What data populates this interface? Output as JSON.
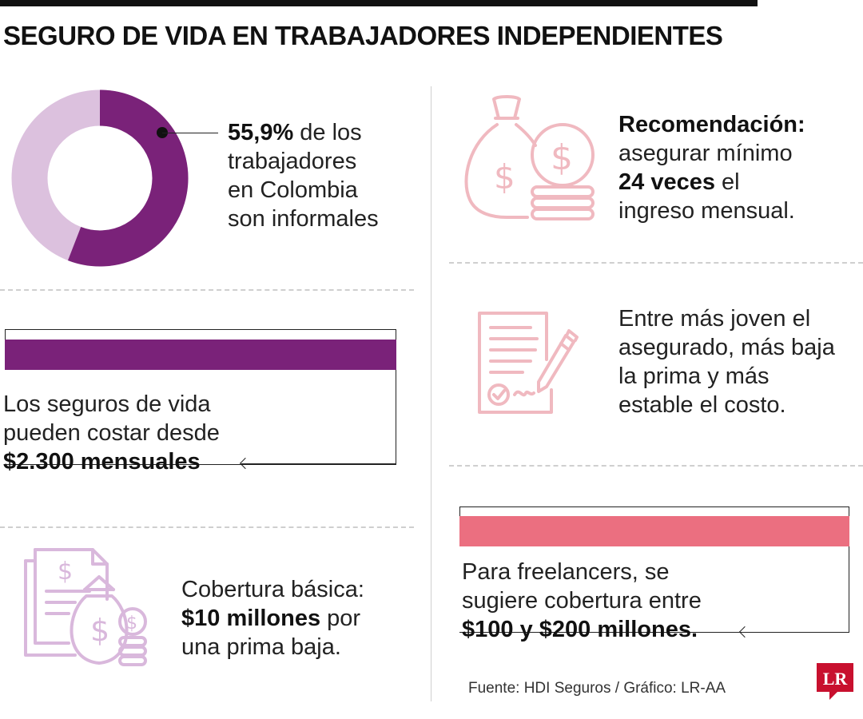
{
  "header": {
    "title": "SEGURO DE VIDA EN TRABAJADORES INDEPENDIENTES"
  },
  "informal": {
    "percent": "55,9%",
    "percent_value": 55.9,
    "line1_rest": " de los",
    "line2": "trabajadores",
    "line3": "en Colombia",
    "line4": "son informales",
    "color_main": "#7a2279",
    "color_rest": "#dcc1de"
  },
  "cost": {
    "line1": "Los seguros de vida",
    "line2": "pueden costar desde",
    "line3": "$2.300 mensuales",
    "bar_color": "#7a2279"
  },
  "basic": {
    "line1": "Cobertura básica:",
    "line2_bold": "$10 millones",
    "line2_rest": " por",
    "line3": "una prima baja.",
    "icon": "document-money-bag-icon"
  },
  "recommendation": {
    "line1": "Recomendación:",
    "line2": "asegurar mínimo",
    "line3_bold": "24 veces",
    "line3_rest": " el",
    "line4": "ingreso mensual.",
    "icon": "money-bag-coins-icon"
  },
  "young": {
    "line1": "Entre más joven el",
    "line2": "asegurado, más baja",
    "line3": "la prima y más",
    "line4": "estable el costo.",
    "icon": "contract-pen-icon"
  },
  "freelancers": {
    "line1": "Para freelancers, se",
    "line2": "sugiere cobertura entre",
    "line3": "$100 y $200 millones.",
    "bar_color": "#eb6f80"
  },
  "footer": {
    "source": "Fuente: HDI Seguros / Gráfico: LR-AA",
    "logo": "LR"
  }
}
